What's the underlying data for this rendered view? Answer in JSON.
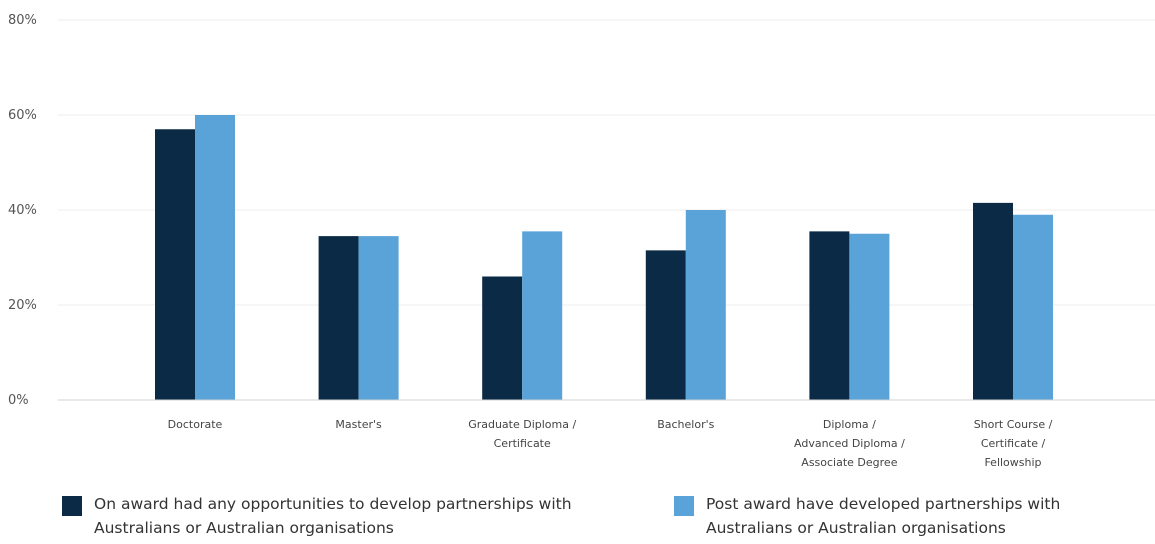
{
  "chart_data": {
    "type": "bar",
    "categories": [
      "Doctorate",
      "Master's",
      "Graduate Diploma /\nCertificate",
      "Bachelor's",
      "Diploma /\nAdvanced Diploma /\nAssociate Degree",
      "Short Course /\nCertificate /\nFellowship"
    ],
    "series": [
      {
        "name": "On award had any opportunities to develop partnerships with\nAustralians or Australian organisations",
        "values": [
          57,
          34.5,
          26,
          31.5,
          35.5,
          41.5
        ]
      },
      {
        "name": "Post award have developed partnerships with\nAustralians or Australian organisations",
        "values": [
          60,
          34.5,
          35.5,
          40,
          35,
          39
        ]
      }
    ],
    "ylim": [
      0,
      80
    ],
    "yticks": [
      "0%",
      "20%",
      "40%",
      "60%",
      "80%"
    ],
    "ytick_values": [
      0,
      20,
      40,
      60,
      80
    ],
    "grid": true,
    "legend_position": "bottom",
    "colors": [
      "#0a2a45",
      "#5aa3d8"
    ]
  }
}
